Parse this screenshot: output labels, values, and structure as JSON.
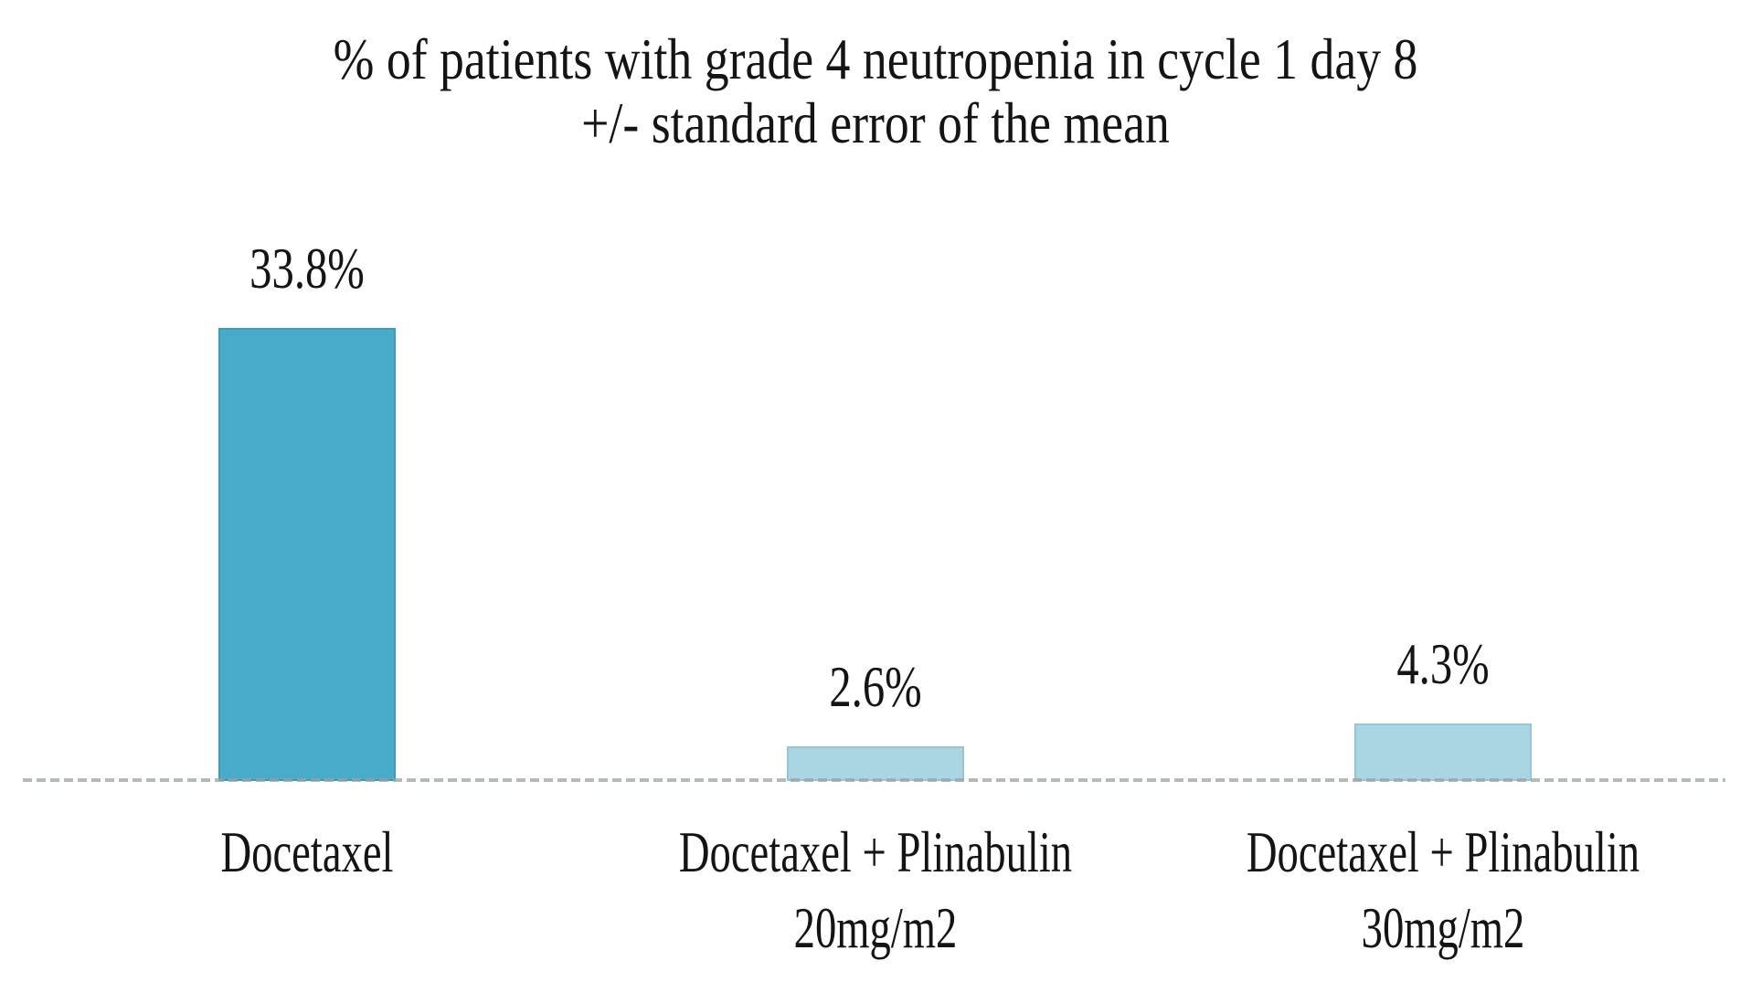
{
  "chart_data": {
    "type": "bar",
    "title": {
      "line1": "% of patients with grade 4 neutropenia in cycle 1 day 8",
      "line2": "+/- standard error of the mean"
    },
    "categories": [
      {
        "line1": "Docetaxel",
        "line2": ""
      },
      {
        "line1": "Docetaxel + Plinabulin",
        "line2": "20mg/m2"
      },
      {
        "line1": "Docetaxel + Plinabulin",
        "line2": "30mg/m2"
      }
    ],
    "series": [
      {
        "name": "% of patients with grade 4 neutropenia",
        "values": [
          33.8,
          2.6,
          4.3
        ],
        "labels": [
          "33.8%",
          "2.6%",
          "4.3%"
        ]
      }
    ],
    "value_suffix": "%",
    "ylim": [
      0,
      35
    ],
    "y_axis_visible": false,
    "gridlines": false,
    "legend_position": "none",
    "bar_colors": [
      "#47abc9",
      "#a9d6e2",
      "#a9d6e2"
    ],
    "bar_border_colors": [
      "#3c9db9",
      "#93c7d6",
      "#93c7d6"
    ],
    "baseline_style": "dashed",
    "baseline_color": "#9aa3a6",
    "text_color": "#141414",
    "background_color": "#ffffff"
  }
}
